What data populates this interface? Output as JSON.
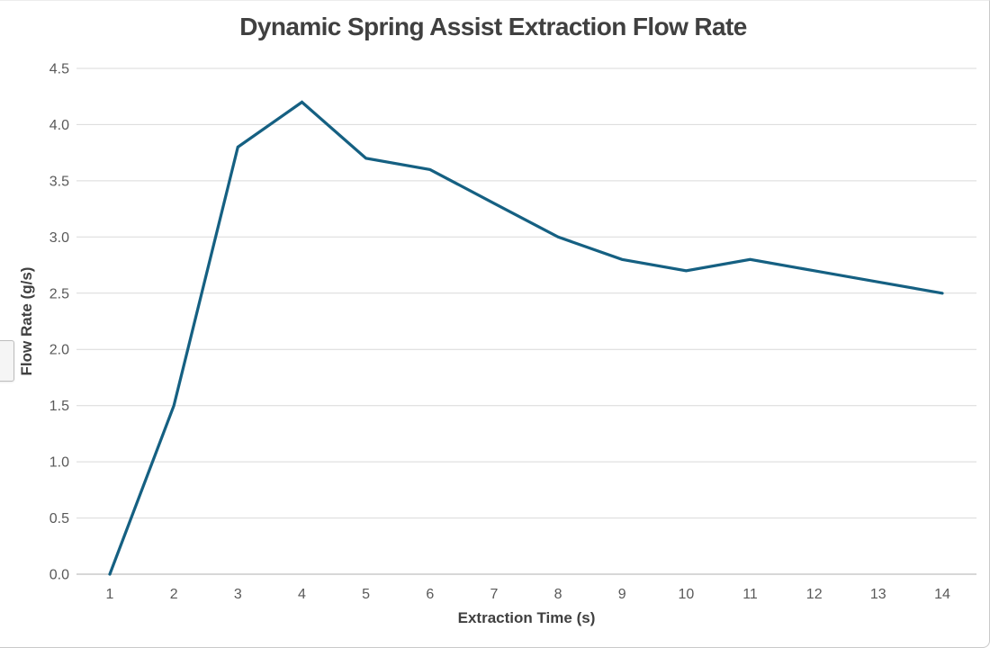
{
  "chart_data": {
    "type": "line",
    "title": "Dynamic Spring Assist Extraction Flow Rate",
    "xlabel": "Extraction Time (s)",
    "ylabel": "Flow Rate (g/s)",
    "x": [
      1,
      2,
      3,
      4,
      5,
      6,
      7,
      8,
      9,
      10,
      11,
      12,
      13,
      14
    ],
    "series": [
      {
        "name": "Flow Rate (g/s)",
        "values": [
          0.0,
          1.5,
          3.8,
          4.2,
          3.7,
          3.6,
          3.3,
          3.0,
          2.8,
          2.7,
          2.8,
          2.7,
          2.6,
          2.5
        ]
      }
    ],
    "ylim": [
      0.0,
      4.5
    ],
    "ytick_step": 0.5,
    "xticks": [
      1,
      2,
      3,
      4,
      5,
      6,
      7,
      8,
      9,
      10,
      11,
      12,
      13,
      14
    ],
    "grid": true,
    "legend_position": "none",
    "colors": {
      "line": "#156082",
      "gridline": "#d9d9d9",
      "axis_line": "#bfbfbf",
      "tick_text": "#595959",
      "title_text": "#404040"
    }
  }
}
